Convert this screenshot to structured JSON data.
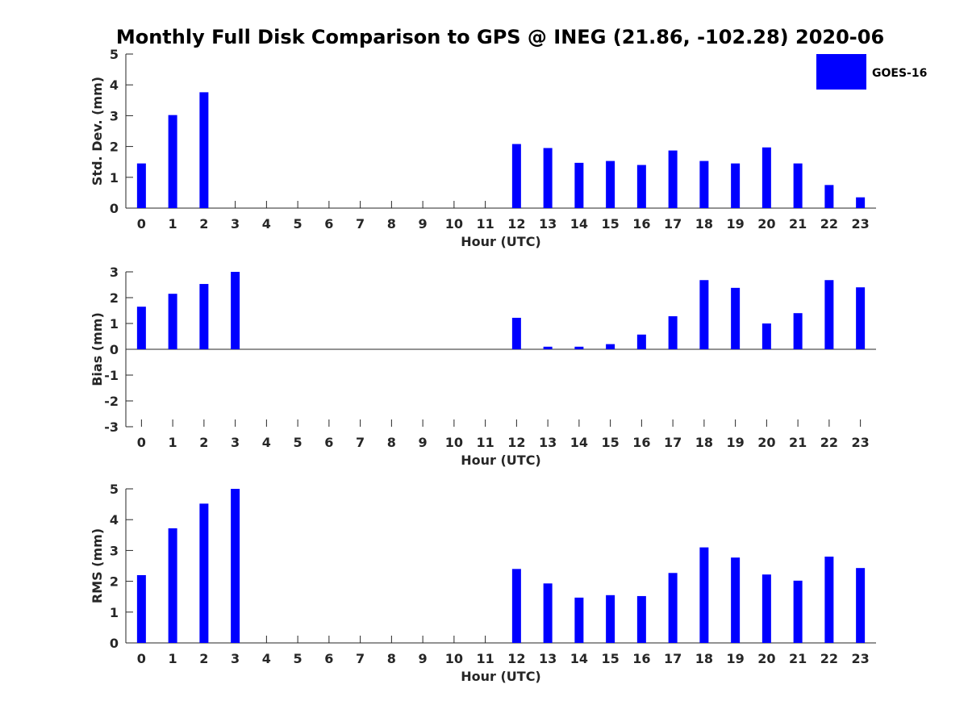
{
  "chart_data": {
    "type": "bar",
    "title": "Monthly Full Disk Comparison to GPS @ INEG (21.86, -102.28) 2020-06",
    "legend": {
      "label": "GOES-16",
      "placement": "top-right",
      "color": "#0000ff"
    },
    "bar_color": "#0000ff",
    "categories": [
      "0",
      "1",
      "2",
      "3",
      "4",
      "5",
      "6",
      "7",
      "8",
      "9",
      "10",
      "11",
      "12",
      "13",
      "14",
      "15",
      "16",
      "17",
      "18",
      "19",
      "20",
      "21",
      "22",
      "23"
    ],
    "panels": [
      {
        "id": "std",
        "ylabel": "Std. Dev. (mm)",
        "xlabel": "Hour (UTC)",
        "ylim": [
          0,
          5
        ],
        "yticks": [
          "0",
          "1",
          "2",
          "3",
          "4",
          "5"
        ],
        "values": [
          1.45,
          3.02,
          3.76,
          null,
          null,
          null,
          null,
          null,
          null,
          null,
          null,
          null,
          2.08,
          1.95,
          1.47,
          1.53,
          1.4,
          1.87,
          1.53,
          1.45,
          1.97,
          1.45,
          0.75,
          0.35
        ]
      },
      {
        "id": "bias",
        "ylabel": "Bias (mm)",
        "xlabel": "Hour (UTC)",
        "ylim": [
          -3,
          3
        ],
        "yticks": [
          "-3",
          "-2",
          "-1",
          "0",
          "1",
          "2",
          "3"
        ],
        "values": [
          1.65,
          2.15,
          2.53,
          3.0,
          null,
          null,
          null,
          null,
          null,
          null,
          null,
          null,
          1.22,
          0.1,
          0.1,
          0.2,
          0.57,
          1.28,
          2.68,
          2.38,
          1.0,
          1.4,
          2.68,
          2.4
        ]
      },
      {
        "id": "rms",
        "ylabel": "RMS (mm)",
        "xlabel": "Hour (UTC)",
        "ylim": [
          0,
          5
        ],
        "yticks": [
          "0",
          "1",
          "2",
          "3",
          "4",
          "5"
        ],
        "values": [
          2.2,
          3.72,
          4.52,
          5.0,
          null,
          null,
          null,
          null,
          null,
          null,
          null,
          null,
          2.4,
          1.93,
          1.47,
          1.55,
          1.52,
          2.27,
          3.1,
          2.77,
          2.22,
          2.02,
          2.8,
          2.43
        ]
      }
    ]
  }
}
